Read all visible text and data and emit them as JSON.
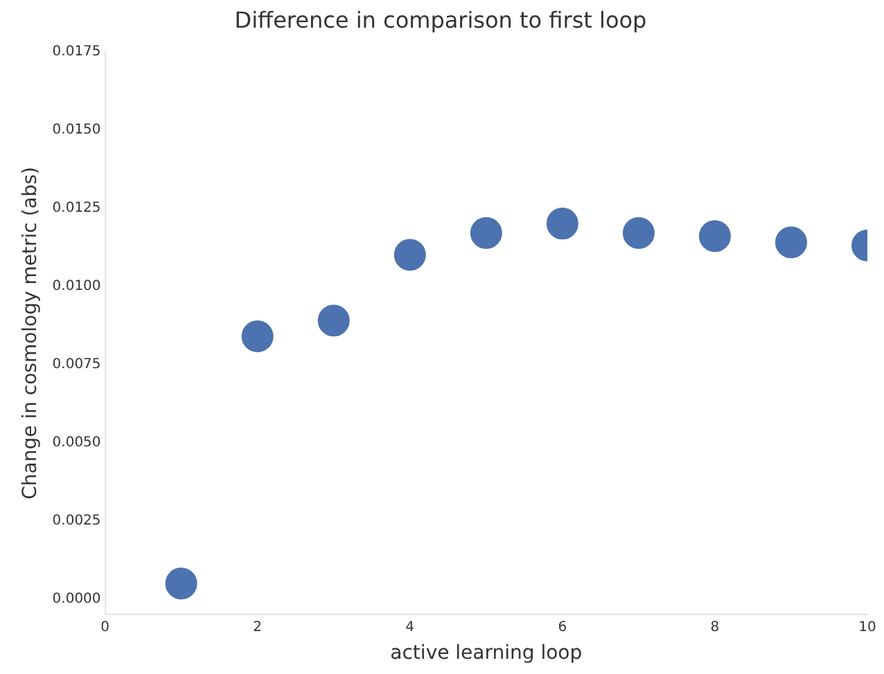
{
  "chart_data": {
    "type": "scatter",
    "title": "Difference in comparison to first loop",
    "xlabel": "active learning loop",
    "ylabel": "Change in cosmology metric (abs)",
    "x": [
      1,
      2,
      3,
      4,
      5,
      6,
      7,
      8,
      9,
      10
    ],
    "series": [
      {
        "color": "#4c72b0",
        "values": [
          0.0005,
          0.0084,
          0.0089,
          0.011,
          0.0117,
          0.012,
          0.0117,
          0.0116,
          0.0114,
          0.0113
        ]
      }
    ],
    "xlim": [
      0,
      10
    ],
    "xticks": [
      0,
      2,
      4,
      6,
      8,
      10
    ],
    "ylim": [
      -0.0005,
      0.0175
    ],
    "yticks": [
      {
        "value": 0,
        "label": "0.0000"
      },
      {
        "value": 0.0025,
        "label": "0.0025"
      },
      {
        "value": 0.005,
        "label": "0.0050"
      },
      {
        "value": 0.0075,
        "label": "0.0075"
      },
      {
        "value": 0.01,
        "label": "0.0100"
      },
      {
        "value": 0.0125,
        "label": "0.0125"
      },
      {
        "value": 0.015,
        "label": "0.0150"
      },
      {
        "value": 0.0175,
        "label": "0.0175"
      }
    ],
    "grid": false,
    "legend": false,
    "marker": "circle"
  }
}
